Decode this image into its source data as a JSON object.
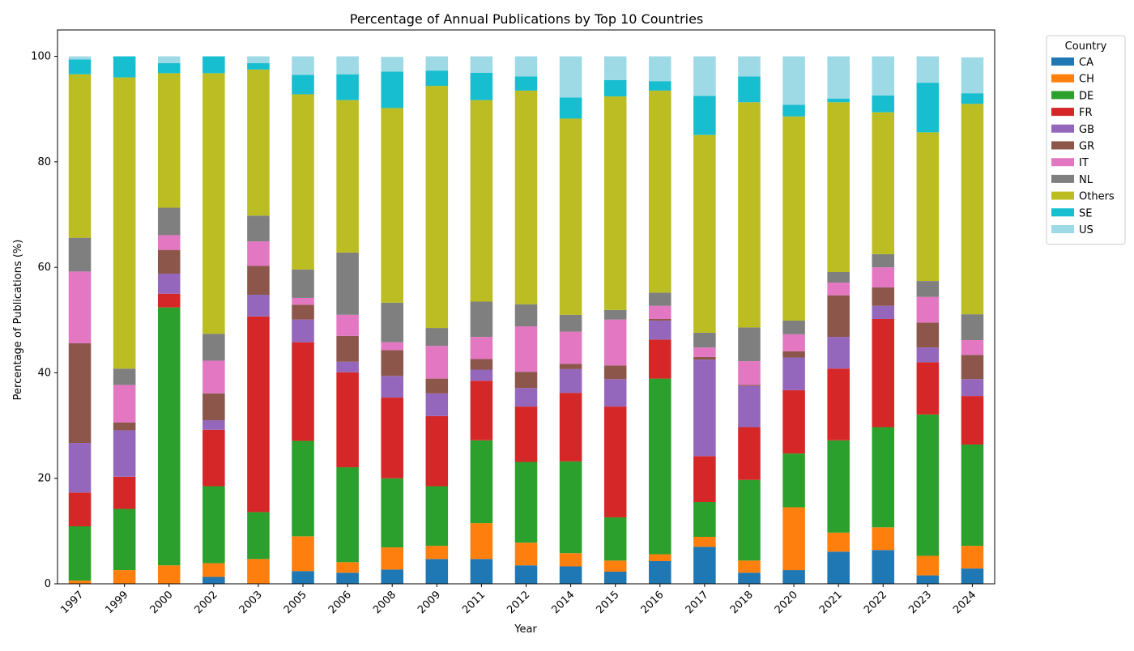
{
  "chart_data": {
    "type": "bar",
    "stacked": true,
    "title": "Percentage of Annual Publications by Top 10 Countries",
    "xlabel": "Year",
    "ylabel": "Percentage of Publications (%)",
    "ylim": [
      0,
      105
    ],
    "yticks": [
      0,
      20,
      40,
      60,
      80,
      100
    ],
    "grid": false,
    "legend": {
      "title": "Country",
      "placement": "outside-top-right"
    },
    "categories": [
      "1997",
      "1999",
      "2000",
      "2002",
      "2003",
      "2005",
      "2006",
      "2008",
      "2009",
      "2011",
      "2012",
      "2014",
      "2015",
      "2016",
      "2017",
      "2018",
      "2020",
      "2021",
      "2022",
      "2023",
      "2024"
    ],
    "series": [
      {
        "name": "CA",
        "color": "#1f77b4",
        "values": [
          0,
          0,
          0,
          1.3,
          0,
          2.4,
          2.1,
          2.7,
          4.7,
          4.7,
          3.5,
          3.3,
          2.3,
          4.3,
          7.0,
          2.1,
          2.6,
          6.1,
          6.4,
          1.6,
          2.9
        ]
      },
      {
        "name": "CH",
        "color": "#ff7f0e",
        "values": [
          0.6,
          2.6,
          3.5,
          2.6,
          4.7,
          6.6,
          2.0,
          4.2,
          2.5,
          6.8,
          4.3,
          2.5,
          2.1,
          1.3,
          1.9,
          2.3,
          11.9,
          3.6,
          4.3,
          3.7,
          4.3
        ]
      },
      {
        "name": "DE",
        "color": "#2ca02c",
        "values": [
          10.3,
          11.6,
          48.9,
          14.6,
          8.9,
          18.1,
          18.0,
          13.1,
          11.3,
          15.7,
          15.3,
          17.4,
          8.2,
          33.3,
          6.6,
          15.3,
          10.2,
          17.5,
          19.0,
          26.8,
          19.2
        ]
      },
      {
        "name": "FR",
        "color": "#d62728",
        "values": [
          6.4,
          6.1,
          2.6,
          10.7,
          37.1,
          18.7,
          18.0,
          15.3,
          13.3,
          11.3,
          10.5,
          13.0,
          21.0,
          7.4,
          8.7,
          10.0,
          12.0,
          13.6,
          20.5,
          9.9,
          9.2
        ]
      },
      {
        "name": "GB",
        "color": "#9467bd",
        "values": [
          9.4,
          8.8,
          3.8,
          1.8,
          4.1,
          4.3,
          2.0,
          4.1,
          4.3,
          2.1,
          3.5,
          4.5,
          5.2,
          3.6,
          18.3,
          7.8,
          6.2,
          6.0,
          2.5,
          2.8,
          3.2
        ]
      },
      {
        "name": "GR",
        "color": "#8c564b",
        "values": [
          18.9,
          1.5,
          4.5,
          5.1,
          5.5,
          2.8,
          4.9,
          4.9,
          2.8,
          2.0,
          3.1,
          1.0,
          2.6,
          0.3,
          0.5,
          0.2,
          1.2,
          7.9,
          3.5,
          4.7,
          4.6
        ]
      },
      {
        "name": "IT",
        "color": "#e377c2",
        "values": [
          13.6,
          7.1,
          2.8,
          6.2,
          4.6,
          1.3,
          4.0,
          1.5,
          6.2,
          4.2,
          8.6,
          6.1,
          8.7,
          2.5,
          1.8,
          4.5,
          3.2,
          2.4,
          3.8,
          4.9,
          2.8
        ]
      },
      {
        "name": "NL",
        "color": "#7f7f7f",
        "values": [
          6.4,
          3.1,
          5.2,
          5.1,
          4.9,
          5.4,
          11.8,
          7.5,
          3.4,
          6.7,
          4.2,
          3.2,
          1.8,
          2.5,
          2.8,
          6.4,
          2.6,
          2.0,
          2.5,
          3.0,
          4.9
        ]
      },
      {
        "name": "Others",
        "color": "#bcbd22",
        "values": [
          31.0,
          55.2,
          25.5,
          49.4,
          27.7,
          33.2,
          28.9,
          36.9,
          45.9,
          38.2,
          40.5,
          37.2,
          40.5,
          38.3,
          37.5,
          42.7,
          38.7,
          32.2,
          26.9,
          28.2,
          39.9
        ]
      },
      {
        "name": "SE",
        "color": "#17becf",
        "values": [
          2.8,
          4.0,
          1.9,
          3.2,
          1.2,
          3.7,
          4.9,
          6.9,
          2.9,
          5.2,
          2.7,
          4.0,
          3.1,
          1.8,
          7.4,
          4.9,
          2.2,
          0.7,
          3.2,
          9.4,
          2.0
        ]
      },
      {
        "name": "US",
        "color": "#9edae5",
        "values": [
          0.6,
          0,
          1.3,
          0,
          1.3,
          3.5,
          3.4,
          2.8,
          2.7,
          3.1,
          3.8,
          7.8,
          4.5,
          4.7,
          7.5,
          3.8,
          9.2,
          8.0,
          7.4,
          5.0,
          6.8
        ]
      }
    ]
  }
}
